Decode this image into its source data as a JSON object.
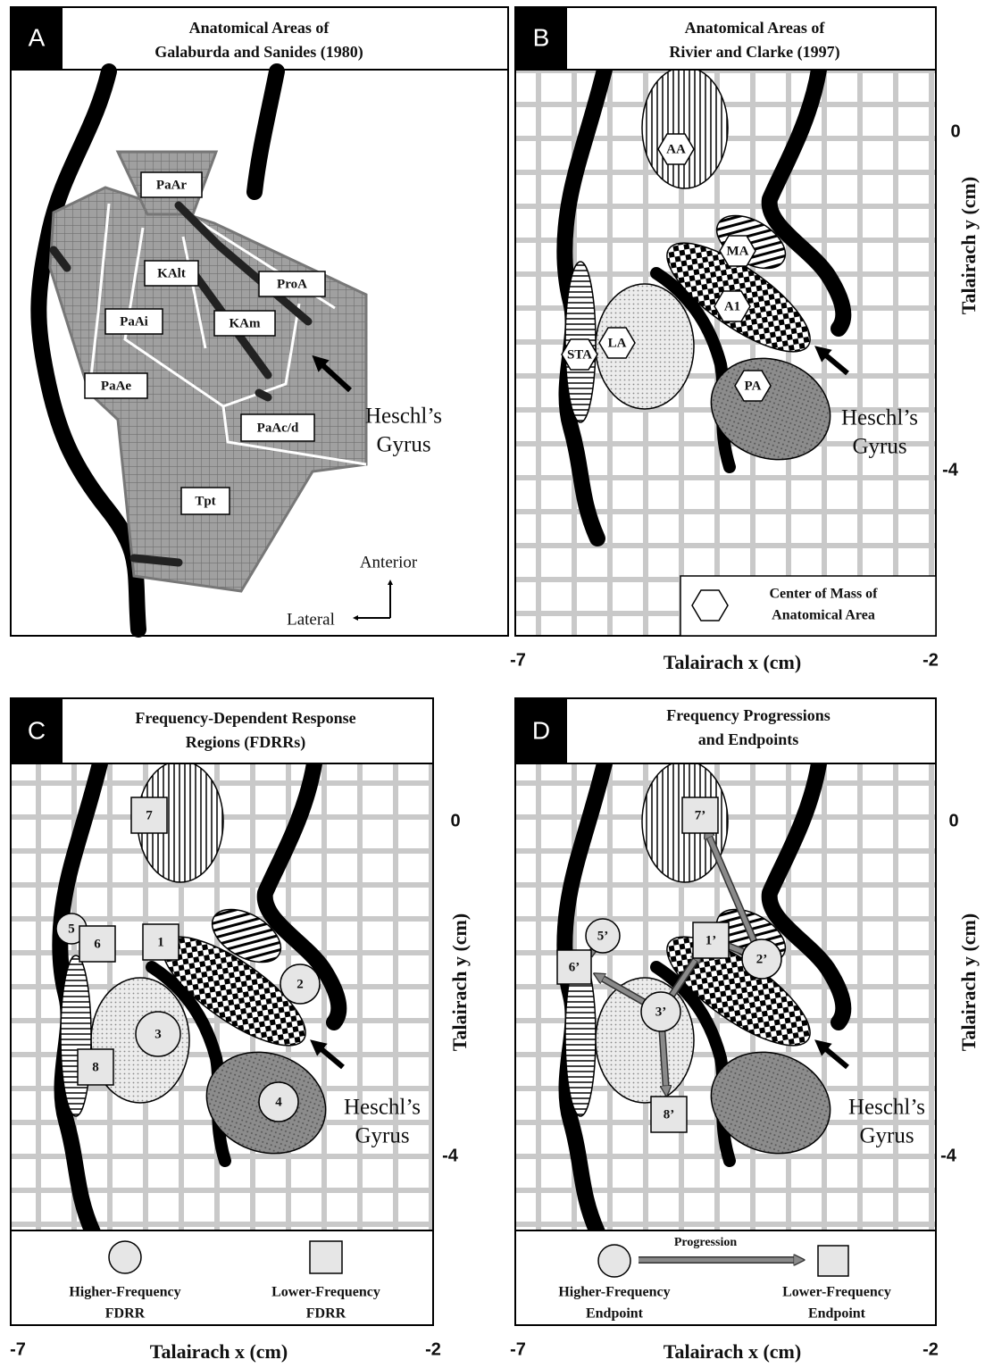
{
  "panels": [
    {
      "letter": "A",
      "title": [
        "Anatomical Areas of",
        "Galaburda and Sanides (1980)"
      ],
      "areas": [
        "PaAr",
        "KAlt",
        "ProA",
        "PaAi",
        "KAm",
        "PaAe",
        "PaAc/d",
        "Tpt"
      ],
      "landmark": [
        "Heschl’s",
        "Gyrus"
      ],
      "directions": [
        "Anterior",
        "Lateral"
      ]
    },
    {
      "letter": "B",
      "title": [
        "Anatomical Areas of",
        "Rivier and Clarke (1997)"
      ],
      "areas": [
        "AA",
        "MA",
        "A1",
        "STA",
        "LA",
        "PA"
      ],
      "landmark": [
        "Heschl’s",
        "Gyrus"
      ],
      "legend": [
        "Center of Mass of",
        "Anatomical Area"
      ],
      "y_axis": {
        "label": "Talairach y (cm)",
        "ticks": [
          0,
          -4
        ]
      },
      "x_axis": {
        "label": "Talairach x (cm)",
        "ticks": [
          -7,
          -2
        ]
      }
    },
    {
      "letter": "C",
      "title": [
        "Frequency-Dependent Response",
        "Regions (FDRRs)"
      ],
      "regions": [
        "7",
        "5",
        "6",
        "1",
        "2",
        "3",
        "8",
        "4"
      ],
      "landmark": [
        "Heschl’s",
        "Gyrus"
      ],
      "legend": {
        "higher": [
          "Higher-Frequency",
          "FDRR"
        ],
        "lower": [
          "Lower-Frequency",
          "FDRR"
        ]
      },
      "y_axis": {
        "label": "Talairach y (cm)",
        "ticks": [
          0,
          -4
        ]
      },
      "x_axis": {
        "label": "Talairach x (cm)",
        "ticks": [
          -7,
          -2
        ]
      }
    },
    {
      "letter": "D",
      "title": [
        "Frequency Progressions",
        "and Endpoints"
      ],
      "regions": [
        "7’",
        "5’",
        "6’",
        "1’",
        "2’",
        "3’",
        "8’"
      ],
      "landmark": [
        "Heschl’s",
        "Gyrus"
      ],
      "legend": {
        "higher": [
          "Higher-Frequency",
          "Endpoint"
        ],
        "arrow": "Progression",
        "lower": [
          "Lower-Frequency",
          "Endpoint"
        ]
      },
      "y_axis": {
        "label": "Talairach y (cm)",
        "ticks": [
          0,
          -4
        ]
      },
      "x_axis": {
        "label": "Talairach x (cm)",
        "ticks": [
          -7,
          -2
        ]
      }
    }
  ]
}
